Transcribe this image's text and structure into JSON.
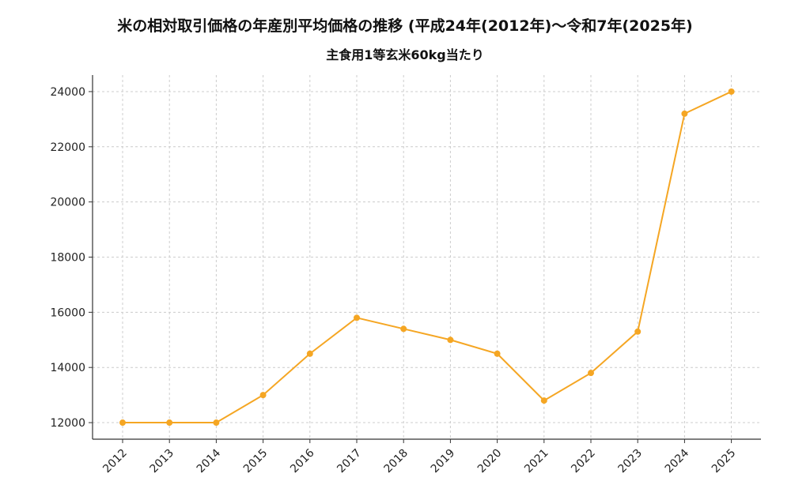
{
  "chart_data": {
    "type": "line",
    "title": "米の相対取引価格の年産別平均価格の推移 (平成24年(2012年)〜令和7年(2025年)",
    "subtitle": "主食用1等玄米60kg当たり",
    "xlabel": "",
    "ylabel": "",
    "x": [
      "2012",
      "2013",
      "2014",
      "2015",
      "2016",
      "2017",
      "2018",
      "2019",
      "2020",
      "2021",
      "2022",
      "2023",
      "2024",
      "2025"
    ],
    "series": [
      {
        "values": [
          12000,
          12000,
          12000,
          13000,
          14500,
          15800,
          15400,
          15000,
          14500,
          12800,
          13800,
          15300,
          23200,
          24000
        ]
      }
    ],
    "yticks": [
      12000,
      14000,
      16000,
      18000,
      20000,
      22000,
      24000
    ],
    "ylim": [
      11400,
      24600
    ],
    "grid": true,
    "legend": "none",
    "colors": {
      "line": "#f5a623",
      "grid": "#cccccc",
      "axis": "#333333"
    }
  }
}
